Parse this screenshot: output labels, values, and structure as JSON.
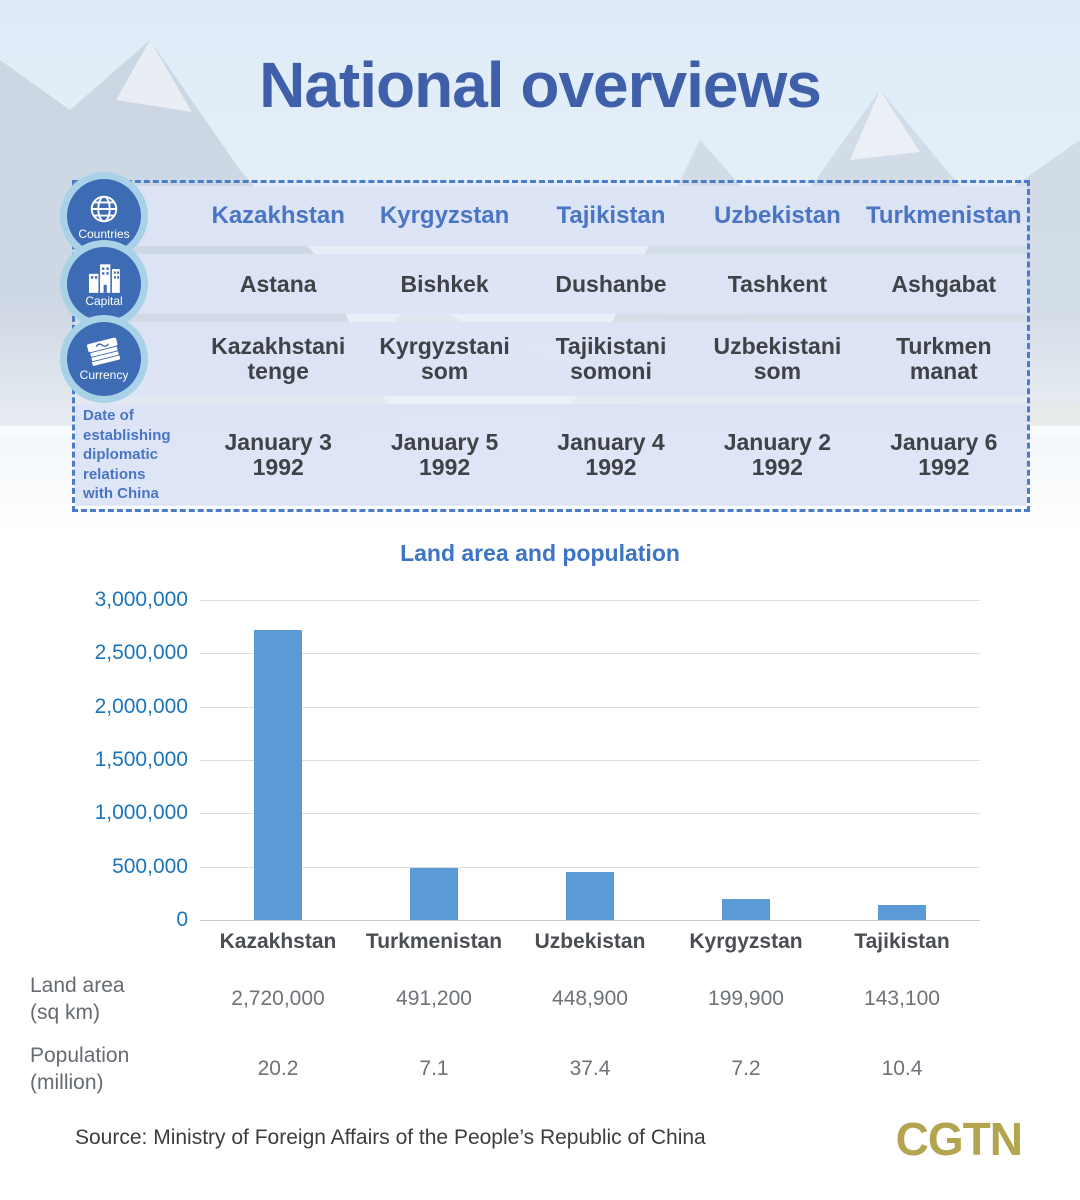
{
  "page": {
    "title": "National overviews",
    "background": "mountain-lake-photo"
  },
  "colors": {
    "title_blue": "#3f5fa9",
    "country_blue": "#4a75c5",
    "row_bg": "#dbe3f5",
    "dashed_border": "#4a7cc9",
    "badge_ring": "#a9d2e8",
    "badge_fill": "#3d6cb4",
    "dark_text": "#3f4347",
    "ytick_blue": "#1b75bc",
    "bar_blue": "#5b9bd5",
    "logo_gold": "#b3a44f"
  },
  "info_table": {
    "rows": [
      {
        "label": "Countries",
        "icon": "globe-icon",
        "cells": [
          "Kazakhstan",
          "Kyrgyzstan",
          "Tajikistan",
          "Uzbekistan",
          "Turkmenistan"
        ]
      },
      {
        "label": "Capital",
        "icon": "city-buildings-icon",
        "cells": [
          "Astana",
          "Bishkek",
          "Dushanbe",
          "Tashkent",
          "Ashgabat"
        ]
      },
      {
        "label": "Currency",
        "icon": "banknotes-icon",
        "cells": [
          "Kazakhstani\ntenge",
          "Kyrgyzstani\nsom",
          "Tajikistani\nsomoni",
          "Uzbekistani\nsom",
          "Turkmen\nmanat"
        ]
      },
      {
        "label": "Date of\nestablishing\ndiplomatic\nrelations\nwith China",
        "cells": [
          "January 3\n1992",
          "January 5\n1992",
          "January 4\n1992",
          "January 2\n1992",
          "January 6\n1992"
        ]
      }
    ]
  },
  "chart_data": {
    "type": "bar",
    "title": "Land area and population",
    "categories": [
      "Kazakhstan",
      "Turkmenistan",
      "Uzbekistan",
      "Kyrgyzstan",
      "Tajikistan"
    ],
    "values": [
      2720000,
      491200,
      448900,
      199900,
      143100
    ],
    "ylim": [
      0,
      3000000
    ],
    "yticks": [
      "3,000,000",
      "2,500,000",
      "2,000,000",
      "1,500,000",
      "1,000,000",
      "500,000",
      "0"
    ],
    "grid": true,
    "legend_position": "none",
    "bar_color": "#5b9bd5",
    "extra_rows": {
      "land_area": {
        "label": "Land area\n(sq km)",
        "values": [
          "2,720,000",
          "491,200",
          "448,900",
          "199,900",
          "143,100"
        ]
      },
      "population": {
        "label": "Population\n(million)",
        "values": [
          "20.2",
          "7.1",
          "37.4",
          "7.2",
          "10.4"
        ]
      }
    }
  },
  "footer": {
    "source": "Source: Ministry of Foreign Affairs of the People’s Republic of China",
    "logo": "CGTN"
  }
}
